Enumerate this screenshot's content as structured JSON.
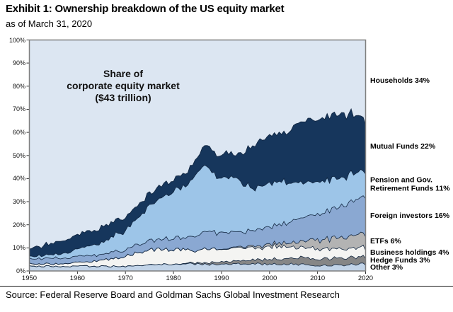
{
  "header": {
    "title": "Exhibit 1: Ownership breakdown of the US equity market",
    "subtitle": "as of March 31, 2020"
  },
  "annotation": {
    "text": "Share of\ncorporate equity market\n($43 trillion)"
  },
  "source": {
    "text": "Source: Federal Reserve Board and Goldman Sachs Global Investment Research"
  },
  "colors": {
    "plot_bg": "#dce6f2",
    "frame": "#7f7f7f",
    "boundary": "#10253f",
    "tick": "#333333"
  },
  "chart_data": {
    "type": "area",
    "stacked": true,
    "title": "Share of corporate equity market ($43 trillion)",
    "xlabel": "",
    "ylabel": "",
    "x_range": [
      1950,
      2020
    ],
    "y_range": [
      0,
      100
    ],
    "grid": false,
    "legend_position": "right-outside",
    "y_ticks": [
      {
        "label": "0%",
        "value": 0
      },
      {
        "label": "10%",
        "value": 10
      },
      {
        "label": "20%",
        "value": 20
      },
      {
        "label": "30%",
        "value": 30
      },
      {
        "label": "40%",
        "value": 40
      },
      {
        "label": "50%",
        "value": 50
      },
      {
        "label": "60%",
        "value": 60
      },
      {
        "label": "70%",
        "value": 70
      },
      {
        "label": "80%",
        "value": 80
      },
      {
        "label": "90%",
        "value": 90
      },
      {
        "label": "100%",
        "value": 100
      }
    ],
    "x_ticks": [
      {
        "label": "1950",
        "value": 1950
      },
      {
        "label": "1960",
        "value": 1960
      },
      {
        "label": "1970",
        "value": 1970
      },
      {
        "label": "1980",
        "value": 1980
      },
      {
        "label": "1990",
        "value": 1990
      },
      {
        "label": "2000",
        "value": 2000
      },
      {
        "label": "2010",
        "value": 2010
      },
      {
        "label": "2020",
        "value": 2020
      }
    ],
    "years": [
      1950,
      1955,
      1960,
      1965,
      1970,
      1973,
      1975,
      1980,
      1983,
      1985,
      1987,
      1989,
      1991,
      1993,
      1995,
      1997,
      2000,
      2003,
      2005,
      2007,
      2010,
      2013,
      2015,
      2017,
      2020
    ],
    "series": [
      {
        "name": "Other",
        "label": "Other 3%",
        "share_2020_pct": 3,
        "color": "#c2d4e8",
        "values": [
          2,
          2,
          2,
          2,
          2,
          2.2,
          2.5,
          3,
          3,
          3,
          2.8,
          3,
          3,
          3,
          3,
          3,
          3,
          2.8,
          3,
          2.7,
          2.5,
          2.5,
          2.5,
          2.8,
          3
        ]
      },
      {
        "name": "Hedge Funds",
        "label": "Hedge Funds 3%",
        "share_2020_pct": 3,
        "color": "#868686",
        "values": [
          0,
          0,
          0,
          0,
          0,
          0,
          0,
          0,
          0.3,
          0.5,
          0.7,
          1,
          1,
          1.2,
          1.5,
          1.8,
          2,
          2.5,
          2.5,
          3,
          3,
          3,
          3,
          3,
          3
        ]
      },
      {
        "name": "Business holdings",
        "label": "Business holdings 4%",
        "share_2020_pct": 4,
        "color": "#f4f4f2",
        "values": [
          1,
          1,
          1.5,
          2.5,
          4.5,
          6,
          6.5,
          6.5,
          6,
          5,
          6,
          6,
          5.5,
          6.5,
          5.5,
          5.5,
          5.5,
          5.5,
          5,
          4.5,
          4.5,
          4,
          4,
          4,
          4
        ]
      },
      {
        "name": "ETFs",
        "label": "ETFs 6%",
        "share_2020_pct": 6,
        "color": "#b3b3b3",
        "values": [
          0,
          0,
          0,
          0,
          0,
          0,
          0,
          0,
          0,
          0,
          0,
          0,
          0.2,
          0.3,
          0.5,
          0.8,
          1,
          1.5,
          2,
          3,
          4,
          4.5,
          5,
          5.5,
          6
        ]
      },
      {
        "name": "Foreign investors",
        "label": "Foreign investors 16%",
        "share_2020_pct": 16,
        "color": "#8aa8d2",
        "values": [
          2.5,
          2.5,
          2.5,
          2.5,
          3,
          3.5,
          4,
          5,
          5.5,
          6.5,
          7.5,
          7,
          7,
          7,
          6.5,
          7,
          7.5,
          8.5,
          9.5,
          10.5,
          11,
          12.5,
          13.5,
          14.5,
          16
        ]
      },
      {
        "name": "Pension and Gov. Retirement Funds",
        "label": "Pension and Gov.\nRetirement Funds 11%",
        "share_2020_pct": 11,
        "color": "#9dc5e8",
        "values": [
          1,
          1.5,
          3,
          5,
          8.5,
          12,
          15,
          20.5,
          23,
          27,
          28.5,
          24,
          24,
          23,
          20,
          18,
          19,
          18,
          16,
          15,
          14,
          13,
          12,
          12,
          11
        ]
      },
      {
        "name": "Mutual Funds",
        "label": "Mutual Funds 22%",
        "share_2020_pct": 22,
        "color": "#16365c",
        "values": [
          3.5,
          5,
          6,
          6.5,
          6,
          5.5,
          5,
          5,
          6,
          7,
          9.5,
          9,
          11,
          10,
          15,
          19,
          21,
          21,
          24,
          27,
          27,
          28,
          28,
          26,
          22
        ]
      },
      {
        "name": "Households",
        "label": "Households 34%",
        "share_2020_pct": 34,
        "color": "#dce6f2",
        "fill_to_top": true,
        "values": [
          90,
          88,
          85,
          81.5,
          76,
          70,
          67,
          60,
          56,
          51,
          45,
          49,
          47,
          49,
          48,
          45,
          41,
          40,
          38,
          34,
          34,
          32,
          32,
          32,
          34
        ]
      }
    ]
  }
}
